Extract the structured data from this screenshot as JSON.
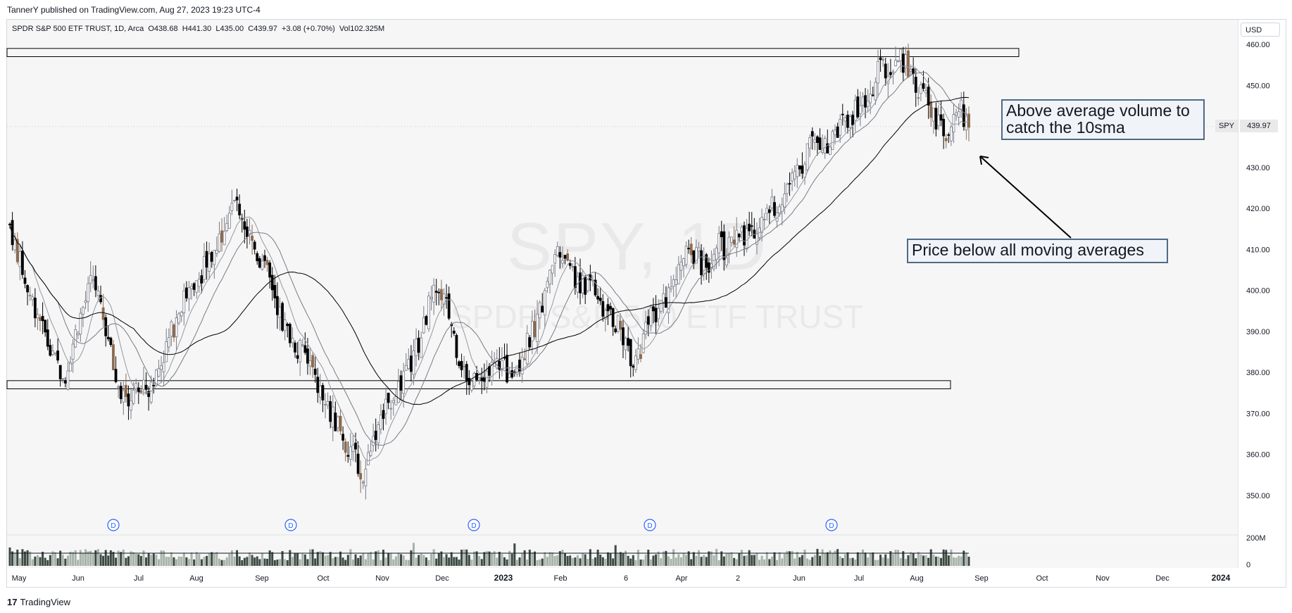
{
  "header": {
    "publish_line": "TannerY published on TradingView.com, Aug 27, 2023 19:23 UTC-4"
  },
  "legend": {
    "symbol_line": "SPDR S&P 500 ETF TRUST, 1D, Arca  O438.68  H441.30  L435.00  C439.97  +3.08 (+0.70%)  Vol102.325M"
  },
  "currency": "USD",
  "watermark": {
    "ticker": "SPY, 1D",
    "name": "SPDR S&P 500 ETF TRUST"
  },
  "last_price": {
    "symbol": "SPY",
    "value": "439.97"
  },
  "annotations": {
    "volume_note": "Above average volume to catch the 10sma",
    "price_note": "Price below all moving averages"
  },
  "footer": {
    "brand": "TradingView",
    "logo_mark": "17"
  },
  "colors": {
    "up_candle": "#787b86",
    "down_candle": "#000000",
    "sell_candle": "#8c6a4f",
    "ma_fast": "#9598a1",
    "ma_mid": "#787b86",
    "ma_slow": "#000000",
    "dividend": "#2962ff",
    "zone_border": "#000000"
  },
  "chart_data": {
    "type": "candlestick",
    "symbol": "SPY",
    "interval": "1D",
    "y_axis_ticks": [
      "460.00",
      "450.00",
      "440.00",
      "430.00",
      "420.00",
      "410.00",
      "400.00",
      "390.00",
      "380.00",
      "370.00",
      "360.00",
      "350.00"
    ],
    "ylim": [
      345,
      462
    ],
    "volume_axis_ticks": [
      "200M",
      "0"
    ],
    "x_axis_ticks": [
      "May",
      "Jun",
      "Jul",
      "Aug",
      "Sep",
      "Oct",
      "Nov",
      "Dec",
      "2023",
      "Feb",
      "6",
      "Apr",
      "2",
      "Jun",
      "Jul",
      "Aug",
      "Sep",
      "Oct",
      "Nov",
      "Dec",
      "2024"
    ],
    "x_axis_bold": [
      "2023",
      "2024"
    ],
    "dividend_marker_label": "D",
    "dividends_at": [
      "Jun",
      "Sep",
      "Dec",
      "Mar",
      "Jun"
    ],
    "resistance_zone": [
      457,
      459
    ],
    "support_zone": [
      376,
      378
    ],
    "price_path": [
      [
        0,
        416
      ],
      [
        6,
        402
      ],
      [
        12,
        393
      ],
      [
        17,
        383
      ],
      [
        22,
        380
      ],
      [
        27,
        392
      ],
      [
        33,
        403
      ],
      [
        37,
        394
      ],
      [
        42,
        378
      ],
      [
        47,
        374
      ],
      [
        52,
        375
      ],
      [
        57,
        378
      ],
      [
        62,
        386
      ],
      [
        68,
        397
      ],
      [
        74,
        403
      ],
      [
        80,
        408
      ],
      [
        86,
        418
      ],
      [
        90,
        422
      ],
      [
        94,
        414
      ],
      [
        99,
        408
      ],
      [
        104,
        401
      ],
      [
        108,
        392
      ],
      [
        112,
        388
      ],
      [
        117,
        384
      ],
      [
        121,
        379
      ],
      [
        125,
        372
      ],
      [
        129,
        368
      ],
      [
        133,
        362
      ],
      [
        137,
        359
      ],
      [
        140,
        353
      ],
      [
        143,
        363
      ],
      [
        147,
        369
      ],
      [
        152,
        375
      ],
      [
        157,
        379
      ],
      [
        162,
        387
      ],
      [
        166,
        396
      ],
      [
        170,
        401
      ],
      [
        174,
        394
      ],
      [
        178,
        384
      ],
      [
        182,
        378
      ],
      [
        186,
        377
      ],
      [
        190,
        379
      ],
      [
        194,
        383
      ],
      [
        198,
        379
      ],
      [
        202,
        383
      ],
      [
        206,
        388
      ],
      [
        210,
        395
      ],
      [
        214,
        405
      ],
      [
        218,
        411
      ],
      [
        222,
        406
      ],
      [
        226,
        400
      ],
      [
        230,
        403
      ],
      [
        235,
        396
      ],
      [
        239,
        393
      ],
      [
        243,
        389
      ],
      [
        247,
        383
      ],
      [
        250,
        386
      ],
      [
        254,
        393
      ],
      [
        259,
        397
      ],
      [
        263,
        401
      ],
      [
        267,
        408
      ],
      [
        271,
        409
      ],
      [
        276,
        405
      ],
      [
        280,
        412
      ],
      [
        284,
        409
      ],
      [
        288,
        413
      ],
      [
        292,
        414
      ],
      [
        296,
        416
      ],
      [
        300,
        419
      ],
      [
        304,
        421
      ],
      [
        308,
        426
      ],
      [
        312,
        428
      ],
      [
        316,
        435
      ],
      [
        320,
        438
      ],
      [
        324,
        434
      ],
      [
        328,
        440
      ],
      [
        332,
        442
      ],
      [
        336,
        444
      ],
      [
        340,
        447
      ],
      [
        344,
        453
      ],
      [
        348,
        455
      ],
      [
        352,
        457
      ],
      [
        356,
        454
      ],
      [
        360,
        450
      ],
      [
        364,
        445
      ],
      [
        368,
        441
      ],
      [
        371,
        435
      ],
      [
        374,
        441
      ],
      [
        377,
        444
      ],
      [
        380,
        440
      ]
    ],
    "last_close": 439.97,
    "last_change": "+3.08 (+0.70%)",
    "ohlc_last": {
      "open": 438.68,
      "high": 441.3,
      "low": 435.0,
      "close": 439.97,
      "volume": "102.325M"
    }
  }
}
